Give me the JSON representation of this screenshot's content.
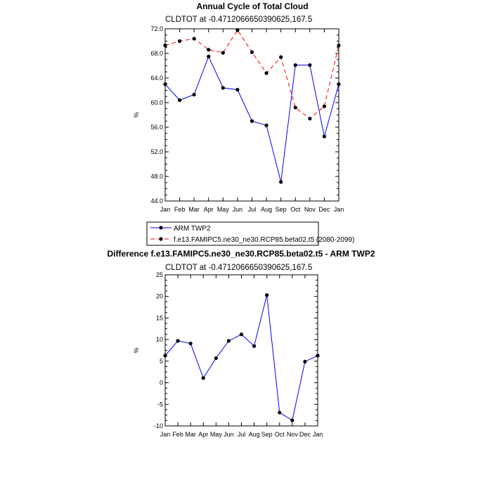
{
  "chart_data": [
    {
      "type": "line",
      "title": "Annual Cycle of Total Cloud",
      "subtitle": "CLDTOT at -0.4712066650390625,167.5",
      "ylabel": "%",
      "categories": [
        "Jan",
        "Feb",
        "Mar",
        "Apr",
        "May",
        "Jun",
        "Jul",
        "Aug",
        "Sep",
        "Oct",
        "Nov",
        "Dec",
        "Jan"
      ],
      "ylim": [
        44,
        72
      ],
      "yticks": [
        "44.0",
        "48.0",
        "52.0",
        "56.0",
        "60.0",
        "64.0",
        "68.0",
        "72.0"
      ],
      "legend": "below",
      "series": [
        {
          "name": "ARM TWP2",
          "color": "#0000ff",
          "dash": "solid",
          "values": [
            63.0,
            60.4,
            61.3,
            67.5,
            62.4,
            62.1,
            57.0,
            56.3,
            47.1,
            66.1,
            66.1,
            54.5,
            63.0
          ]
        },
        {
          "name": "f.e13.FAMIPC5.ne30_ne30.RCP85.beta02.t5 (2080-2099)",
          "color": "#ff0000",
          "dash": "dashed",
          "values": [
            69.3,
            70.0,
            70.4,
            68.6,
            68.1,
            71.8,
            68.2,
            64.8,
            67.4,
            59.2,
            57.4,
            59.4,
            69.3
          ]
        }
      ]
    },
    {
      "type": "line",
      "title": "Difference f.e13.FAMIPC5.ne30_ne30.RCP85.beta02.t5 - ARM TWP2",
      "subtitle": "CLDTOT at -0.4712066650390625,167.5",
      "ylabel": "%",
      "categories": [
        "Jan",
        "Feb",
        "Mar",
        "Apr",
        "May",
        "Jun",
        "Jul",
        "Aug",
        "Sep",
        "Oct",
        "Nov",
        "Dec",
        "Jan"
      ],
      "ylim": [
        -10,
        25
      ],
      "yticks": [
        "-10",
        "-5",
        "0",
        "5",
        "10",
        "15",
        "20",
        "25"
      ],
      "series": [
        {
          "color": "#0000ff",
          "dash": "solid",
          "values": [
            6.3,
            9.7,
            9.1,
            1.1,
            5.7,
            9.7,
            11.2,
            8.5,
            20.3,
            -6.9,
            -8.7,
            4.9,
            6.3
          ]
        }
      ]
    }
  ]
}
